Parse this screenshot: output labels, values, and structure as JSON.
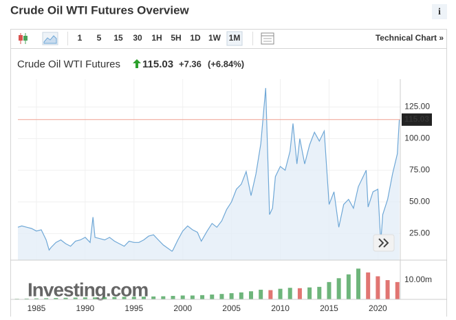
{
  "header": {
    "title": "Crude Oil WTI Futures Overview",
    "info": "i"
  },
  "toolbar": {
    "intervals": [
      "1",
      "5",
      "15",
      "30",
      "1H",
      "5H",
      "1D",
      "1W",
      "1M"
    ],
    "link": "Technical Chart »"
  },
  "quote": {
    "name": "Crude Oil WTI Futures",
    "price": "115.03",
    "change": "+7.36",
    "change_pct": "(+6.84%)"
  },
  "chart_data": {
    "type": "line",
    "watermark": "Investing.com",
    "series": [
      {
        "color": "#6ea7d6",
        "x": [
          1983.1,
          1983.5,
          1984,
          1984.5,
          1985,
          1985.5,
          1986,
          1986.3,
          1986.5,
          1987,
          1987.5,
          1988,
          1988.5,
          1989,
          1989.5,
          1990,
          1990.5,
          1990.8,
          1991,
          1991.5,
          1992,
          1992.5,
          1993,
          1993.5,
          1994,
          1994.5,
          1995,
          1995.5,
          1996,
          1996.5,
          1997,
          1997.5,
          1998,
          1998.9,
          1999,
          1999.5,
          2000,
          2000.5,
          2001,
          2001.5,
          2001.9,
          2002.5,
          2003,
          2003.5,
          2004,
          2004.5,
          2005,
          2005.5,
          2006,
          2006.5,
          2007,
          2007.5,
          2008,
          2008.5,
          2008.9,
          2009.2,
          2009.5,
          2010,
          2010.5,
          2011,
          2011.3,
          2011.7,
          2012,
          2012.5,
          2013,
          2013.5,
          2014,
          2014.5,
          2015,
          2015.5,
          2016,
          2016.5,
          2017,
          2017.5,
          2018,
          2018.8,
          2019,
          2019.5,
          2020,
          2020.3,
          2020.5,
          2021,
          2021.5,
          2022,
          2022.2
        ],
        "values": [
          30,
          31,
          30,
          29,
          27,
          28,
          20,
          12,
          14,
          18,
          20,
          17,
          15,
          19,
          20,
          22,
          18,
          38,
          22,
          21,
          20,
          22,
          19,
          17,
          15,
          19,
          18,
          18,
          20,
          23,
          24,
          20,
          16,
          11,
          12,
          20,
          27,
          31,
          28,
          26,
          19,
          27,
          33,
          30,
          35,
          44,
          50,
          60,
          64,
          74,
          55,
          72,
          96,
          140,
          40,
          45,
          70,
          78,
          75,
          90,
          112,
          80,
          100,
          80,
          95,
          105,
          98,
          106,
          48,
          58,
          30,
          48,
          52,
          45,
          62,
          75,
          46,
          58,
          60,
          18,
          40,
          52,
          72,
          88,
          115.03
        ]
      }
    ],
    "last_value": 115.03,
    "last_line_color": "#f0a090",
    "xlim": [
      1983.1,
      2022.3
    ],
    "xticks": [
      1985,
      1990,
      1995,
      2000,
      2005,
      2010,
      2015,
      2020
    ],
    "ylim": [
      4,
      147
    ],
    "yticks": [
      {
        "value": 25,
        "label": "25.00"
      },
      {
        "value": 50,
        "label": "50.00"
      },
      {
        "value": 75,
        "label": "75.00"
      },
      {
        "value": 100,
        "label": "100.00"
      },
      {
        "value": 125,
        "label": "125.00"
      }
    ],
    "volume": {
      "up_color": "#4aa35a",
      "down_color": "#d9534f",
      "x": [
        1983,
        1984,
        1985,
        1986,
        1987,
        1988,
        1989,
        1990,
        1991,
        1992,
        1993,
        1994,
        1995,
        1996,
        1997,
        1998,
        1999,
        2000,
        2001,
        2002,
        2003,
        2004,
        2005,
        2006,
        2007,
        2008,
        2009,
        2010,
        2011,
        2012,
        2013,
        2014,
        2015,
        2016,
        2017,
        2018,
        2019,
        2020,
        2021,
        2022
      ],
      "values": [
        0.3,
        0.4,
        0.5,
        0.6,
        0.7,
        0.8,
        0.9,
        1,
        1,
        1.1,
        1.2,
        1.3,
        1.3,
        1.4,
        1.5,
        1.6,
        1.8,
        2,
        2,
        2.2,
        2.5,
        2.8,
        3.2,
        3.6,
        4.2,
        5,
        4.8,
        5.5,
        6,
        5.8,
        6.2,
        6.5,
        9,
        11,
        13,
        16,
        14,
        12,
        10,
        9
      ],
      "ylim": [
        0,
        17.9
      ],
      "yticks": [
        {
          "value": 10,
          "label": "10.00m"
        }
      ]
    }
  }
}
